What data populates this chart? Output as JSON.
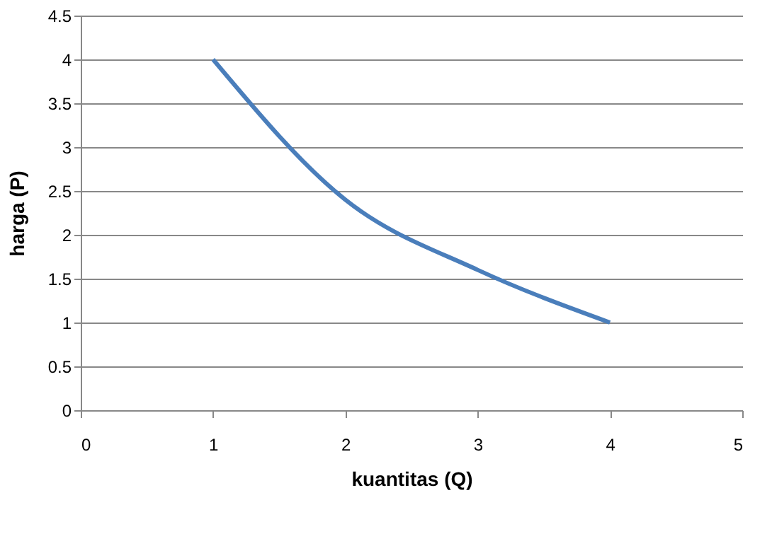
{
  "chart_data": {
    "type": "line",
    "xlabel": "kuantitas (Q)",
    "ylabel": "harga (P)",
    "x": [
      1,
      2,
      3,
      4
    ],
    "series": [
      {
        "color": "#4a7ebb",
        "values": [
          4,
          2.4,
          1.6,
          1
        ]
      }
    ],
    "xlim": [
      0,
      5
    ],
    "xticks": [
      0,
      1,
      2,
      3,
      4,
      5
    ],
    "ylim": [
      0,
      4.5
    ],
    "yticks": [
      0,
      0.5,
      1,
      1.5,
      2,
      2.5,
      3,
      3.5,
      4,
      4.5
    ],
    "grid": "y",
    "legend": false,
    "marker": "none",
    "line_style": "solid"
  }
}
